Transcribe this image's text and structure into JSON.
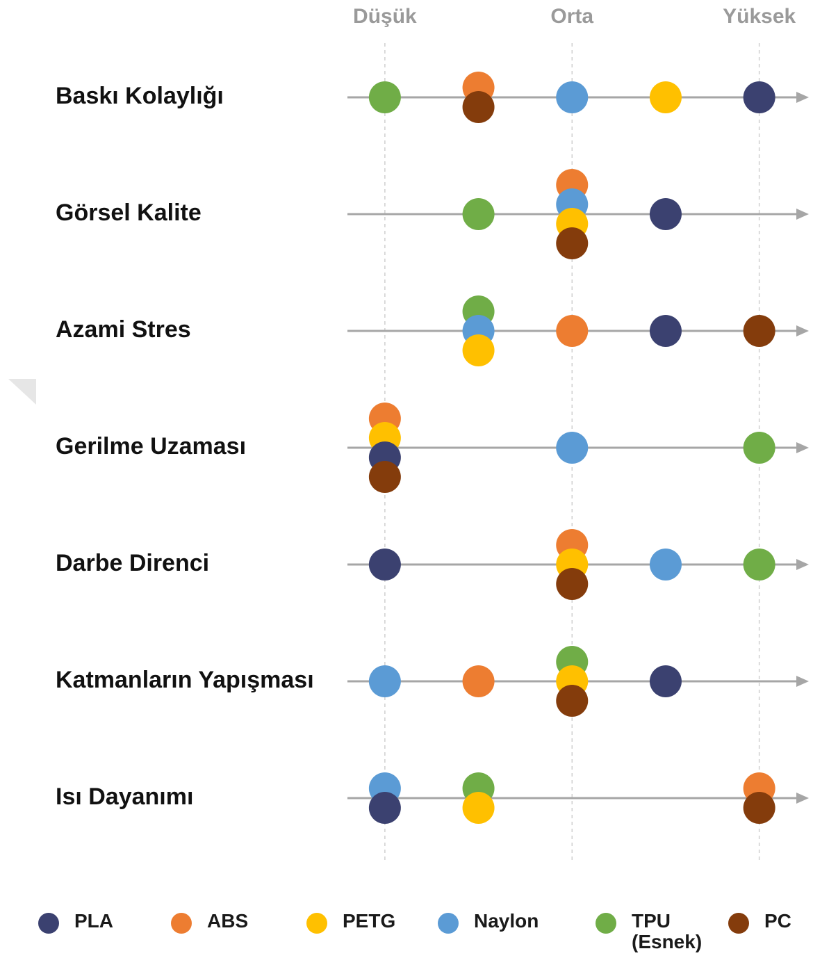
{
  "chart_data": {
    "type": "dot",
    "categories": [
      "Baskı Kolaylığı",
      "Görsel Kalite",
      "Azami Stres",
      "Gerilme Uzaması",
      "Darbe Direnci",
      "Katmanların Yapışması",
      "Isı Dayanımı"
    ],
    "series": [
      {
        "name": "PLA",
        "color": "#3b4170",
        "values": [
          5,
          4,
          4,
          1,
          1,
          4,
          1
        ]
      },
      {
        "name": "ABS",
        "color": "#ed7d31",
        "values": [
          2,
          3,
          3,
          1,
          3,
          2,
          5
        ]
      },
      {
        "name": "PETG",
        "color": "#ffc000",
        "values": [
          4,
          3,
          2,
          1,
          3,
          3,
          2
        ]
      },
      {
        "name": "Naylon",
        "color": "#5b9bd5",
        "values": [
          3,
          3,
          2,
          3,
          4,
          1,
          1
        ]
      },
      {
        "name": "TPU (Esnek)",
        "color": "#70ad47",
        "values": [
          1,
          2,
          2,
          5,
          5,
          3,
          2
        ]
      },
      {
        "name": "PC",
        "color": "#843c0c",
        "values": [
          2,
          3,
          5,
          1,
          3,
          3,
          5
        ]
      }
    ],
    "xlim": [
      0.6,
      5.5
    ],
    "xticks": [
      {
        "value": 1,
        "label": "Düşük"
      },
      {
        "value": 3,
        "label": "Orta"
      },
      {
        "value": 5,
        "label": "Yüksek"
      }
    ],
    "grid": true
  }
}
